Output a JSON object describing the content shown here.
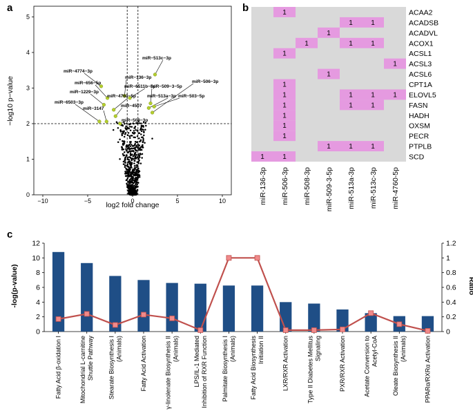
{
  "panels": {
    "a": "a",
    "b": "b",
    "c": "c"
  },
  "chart_data": [
    {
      "type": "scatter",
      "panel": "a",
      "xlabel": "log2 fold change",
      "ylabel": "−log10 p−value",
      "xlim": [
        -11,
        11
      ],
      "ylim": [
        0,
        5.3
      ],
      "xticks": [
        "−10",
        "−5",
        "0",
        "5",
        "10"
      ],
      "yticks": [
        "0",
        "1",
        "2",
        "3",
        "4",
        "5"
      ],
      "threshold_y": 2,
      "threshold_x": [
        -0.6,
        0.6
      ],
      "labeled_points": [
        {
          "label": "miR−513c−3p",
          "x": 2.5,
          "y": 3.38
        },
        {
          "label": "miR−4774−3p",
          "x": -3.5,
          "y": 3.05
        },
        {
          "label": "miR−656−5p",
          "x": -2.8,
          "y": 2.72
        },
        {
          "label": "miR−136−3p",
          "x": -0.9,
          "y": 2.78
        },
        {
          "label": "miR−6511b−5p",
          "x": -0.3,
          "y": 2.72
        },
        {
          "label": "miR−509−3−5p",
          "x": 2.0,
          "y": 2.57
        },
        {
          "label": "miR−506−3p",
          "x": 2.2,
          "y": 2.31
        },
        {
          "label": "miR−1229−3p",
          "x": -3.2,
          "y": 2.53
        },
        {
          "label": "miR−4760−5p",
          "x": -2.1,
          "y": 2.39
        },
        {
          "label": "miR−513a−3p",
          "x": 1.8,
          "y": 2.44
        },
        {
          "label": "miR−503−5p",
          "x": 2.4,
          "y": 2.48
        },
        {
          "label": "miR−6503−3p",
          "x": -3.7,
          "y": 2.06
        },
        {
          "label": "miR−4507",
          "x": -1.9,
          "y": 2.21
        },
        {
          "label": "miR−3147",
          "x": -2.9,
          "y": 2.06
        },
        {
          "label": "miR−508−3p",
          "x": -1.4,
          "y": 2.0
        }
      ]
    },
    {
      "type": "table",
      "panel": "b",
      "columns": [
        "miR-136-3p",
        "miR-506-3p",
        "miR-508-3p",
        "miR-509-3-5p",
        "miR-513a-3p",
        "miR-513c-3p",
        "miR-4760-5p"
      ],
      "rows": [
        "ACAA2",
        "ACADSB",
        "ACADVL",
        "ACOX1",
        "ACSL1",
        "ACSL3",
        "ACSL6",
        "CPT1A",
        "ELOVL5",
        "FASN",
        "HADH",
        "OXSM",
        "PECR",
        "PTPLB",
        "SCD"
      ],
      "matrix": [
        [
          0,
          1,
          0,
          0,
          0,
          0,
          0
        ],
        [
          0,
          0,
          0,
          0,
          1,
          1,
          0
        ],
        [
          0,
          0,
          0,
          1,
          0,
          0,
          0
        ],
        [
          0,
          0,
          1,
          0,
          1,
          1,
          0
        ],
        [
          0,
          1,
          0,
          0,
          0,
          0,
          0
        ],
        [
          0,
          0,
          0,
          0,
          0,
          0,
          1
        ],
        [
          0,
          0,
          0,
          1,
          0,
          0,
          0
        ],
        [
          0,
          1,
          0,
          0,
          0,
          0,
          0
        ],
        [
          0,
          1,
          0,
          0,
          1,
          1,
          1
        ],
        [
          0,
          1,
          0,
          0,
          1,
          1,
          0
        ],
        [
          0,
          1,
          0,
          0,
          0,
          0,
          0
        ],
        [
          0,
          1,
          0,
          0,
          0,
          0,
          0
        ],
        [
          0,
          1,
          0,
          0,
          0,
          0,
          0
        ],
        [
          0,
          0,
          0,
          1,
          1,
          1,
          0
        ],
        [
          1,
          1,
          0,
          0,
          0,
          0,
          0
        ]
      ],
      "cell_text": "1",
      "on_color": "#e59ae0",
      "off_color": "#d9d9d9"
    },
    {
      "type": "bar",
      "panel": "c",
      "ylabel": "-log(p-value)",
      "y2label": "Ratio",
      "ylim": [
        0,
        12
      ],
      "y2lim": [
        0,
        1.2
      ],
      "yticks": [
        "0",
        "2",
        "4",
        "6",
        "8",
        "10",
        "12"
      ],
      "y2ticks": [
        "0",
        "0.2",
        "0.4",
        "0.6",
        "0.8",
        "1",
        "1.2"
      ],
      "categories": [
        "Fatty Acid β-oxidation I",
        "Mitochondrial L-carnitine\nShuttle Pathway",
        "Stearate Biosynthesis I\n(Animals)",
        "Fatty Acid Activation",
        "γ-linolenate Biosynthesis II\n(Animals)",
        "LPS/IL-1 Mediated\nInhibition of RXR Function",
        "Palmitate Biosynthesis I\n(Animals)",
        "Fatty Acid Biosynthesis\nInitiation II",
        "LXR/RXR Activation",
        "Type II Diabetes Mellitus\nSignaling",
        "PXR/RXR Activation",
        "Acetate Conversion to\nAcetyl-CoA",
        "Oleate Biosynthesis II\n(Animals)",
        "PPARα/RXRα Activation"
      ],
      "series": [
        {
          "name": "-log(p-value)",
          "kind": "bar",
          "color": "#1f4e86",
          "values": [
            10.8,
            9.3,
            7.55,
            7.0,
            6.6,
            6.5,
            6.25,
            6.25,
            4.0,
            3.8,
            3.0,
            2.5,
            2.1,
            2.1
          ]
        },
        {
          "name": "Ratio",
          "kind": "line",
          "axis": "right",
          "color": "#c0504d",
          "values": [
            0.17,
            0.24,
            0.09,
            0.23,
            0.18,
            0.02,
            1.0,
            1.0,
            0.02,
            0.02,
            0.03,
            0.25,
            0.1,
            0.01
          ]
        }
      ]
    }
  ]
}
